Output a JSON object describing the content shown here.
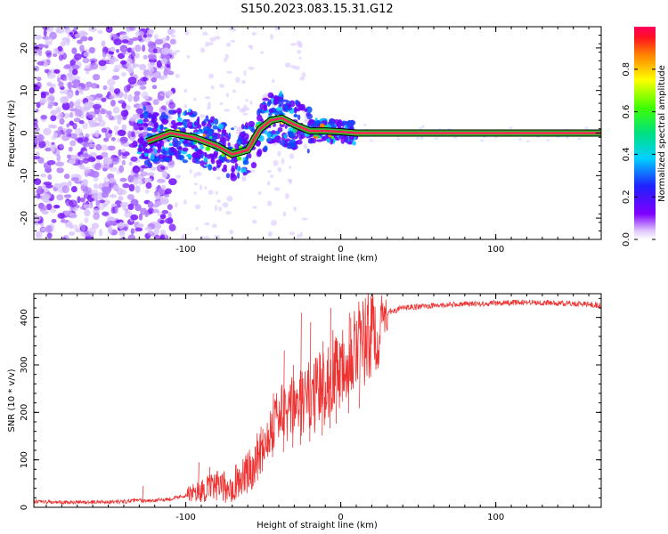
{
  "title": "S150.2023.083.15.31.G12",
  "colors": {
    "snr_line": "#ee3333",
    "track": "#33bb33",
    "track_core": "#ff2255"
  },
  "chart_data": [
    {
      "type": "heatmap",
      "xlabel": "Height of straight line (km)",
      "ylabel": "Frequency (Hz)",
      "xlim": [
        -198,
        168
      ],
      "ylim": [
        -25,
        25
      ],
      "xticks": [
        -100,
        0,
        100
      ],
      "xtick_labels": [
        "-100",
        "0",
        "100"
      ],
      "yticks": [
        -20,
        -10,
        0,
        10,
        20
      ],
      "ytick_labels": [
        "-20",
        "-10",
        "0",
        "10",
        "20"
      ],
      "colorbar": {
        "label": "Normalized spectral amplitude",
        "range": [
          0,
          1
        ],
        "ticks": [
          0.0,
          0.2,
          0.4,
          0.6,
          0.8
        ],
        "tick_labels": [
          "0.0",
          "0.2",
          "0.4",
          "0.6",
          "0.8"
        ]
      },
      "track": [
        {
          "x": -125,
          "y": -2
        },
        {
          "x": -110,
          "y": 0
        },
        {
          "x": -95,
          "y": -1
        },
        {
          "x": -80,
          "y": -3
        },
        {
          "x": -70,
          "y": -5
        },
        {
          "x": -60,
          "y": -4
        },
        {
          "x": -52,
          "y": 1
        },
        {
          "x": -45,
          "y": 3
        },
        {
          "x": -38,
          "y": 3.5
        },
        {
          "x": -30,
          "y": 2
        },
        {
          "x": -20,
          "y": 0.5
        },
        {
          "x": -10,
          "y": 0.5
        },
        {
          "x": 0,
          "y": 0.3
        },
        {
          "x": 10,
          "y": 0
        },
        {
          "x": 168,
          "y": 0
        }
      ]
    },
    {
      "type": "line",
      "xlabel": "Height of straight line (km)",
      "ylabel": "SNR (10 * v/v)",
      "xlim": [
        -198,
        168
      ],
      "ylim": [
        0,
        450
      ],
      "xticks": [
        -100,
        0,
        100
      ],
      "xtick_labels": [
        "-100",
        "0",
        "100"
      ],
      "yticks": [
        0,
        100,
        200,
        300,
        400
      ],
      "ytick_labels": [
        "0",
        "100",
        "200",
        "300",
        "400"
      ],
      "series": [
        {
          "x": [
            -198,
            -180,
            -160,
            -140,
            -130,
            -120,
            -110,
            -100,
            -90,
            -80,
            -75,
            -70,
            -65,
            -60,
            -55,
            -50,
            -45,
            -40,
            -35,
            -30,
            -25,
            -20,
            -15,
            -10,
            -5,
            0,
            5,
            10,
            15,
            20,
            25,
            30,
            40,
            60,
            80,
            100,
            120,
            140,
            160,
            168
          ],
          "y": [
            12,
            10,
            11,
            12,
            15,
            14,
            18,
            25,
            35,
            45,
            40,
            50,
            60,
            70,
            100,
            130,
            170,
            200,
            190,
            215,
            220,
            230,
            240,
            260,
            290,
            300,
            330,
            350,
            345,
            360,
            390,
            410,
            420,
            425,
            428,
            430,
            432,
            430,
            428,
            425
          ],
          "spikes": [
            {
              "x": -128,
              "y": 45
            },
            {
              "x": -92,
              "y": 95
            },
            {
              "x": -85,
              "y": 85
            },
            {
              "x": -68,
              "y": 90
            },
            {
              "x": -52,
              "y": 170
            },
            {
              "x": -44,
              "y": 240
            },
            {
              "x": -37,
              "y": 330
            },
            {
              "x": -31,
              "y": 300
            },
            {
              "x": -26,
              "y": 410
            },
            {
              "x": -20,
              "y": 390
            },
            {
              "x": -12,
              "y": 350
            },
            {
              "x": -7,
              "y": 420
            },
            {
              "x": -3,
              "y": 300
            },
            {
              "x": 5,
              "y": 410
            },
            {
              "x": 12,
              "y": 360
            }
          ]
        }
      ]
    }
  ]
}
